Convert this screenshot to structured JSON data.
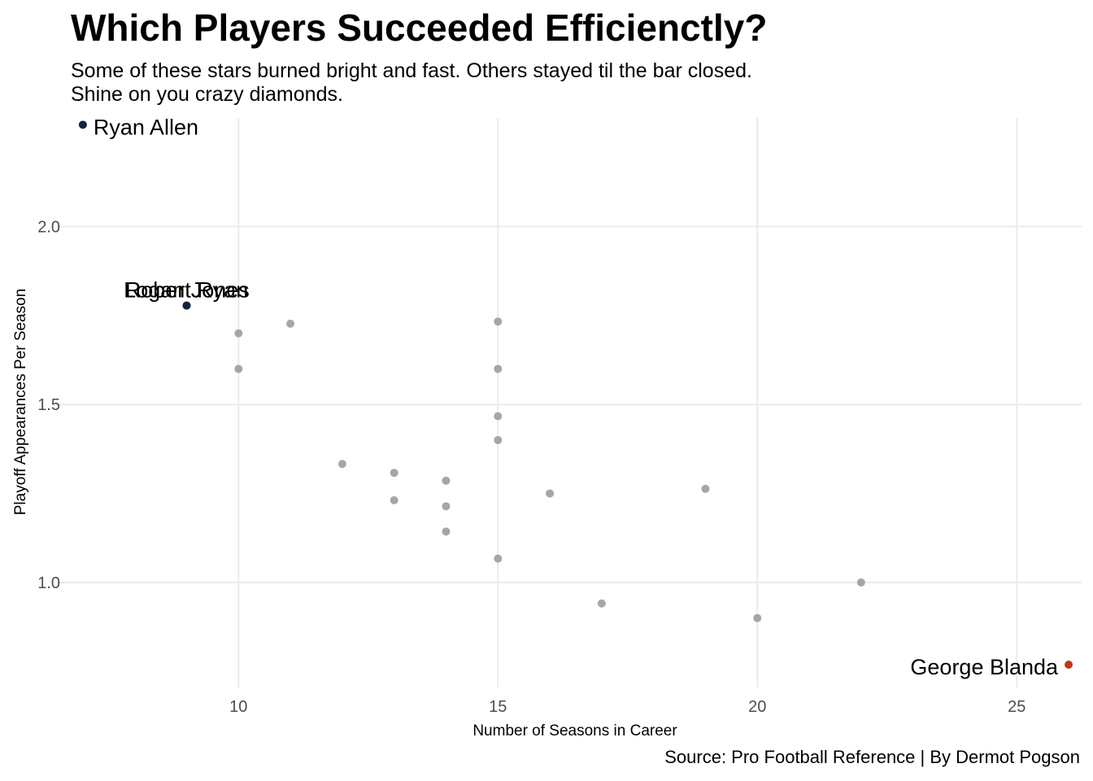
{
  "header": {
    "title": "Which Players Succeeded Efficienctly?",
    "subtitle_line1": "Some of these stars burned bright and fast. Others stayed til the bar closed.",
    "subtitle_line2": "Shine on you crazy diamonds."
  },
  "footer": {
    "caption": "Source: Pro Football Reference | By Dermot Pogson"
  },
  "colors": {
    "default_point": "#a6a6a6",
    "highlight_efficient": "#0b2640",
    "highlight_long": "#c0390b",
    "grid": "#ebebeb"
  },
  "chart_data": {
    "type": "scatter",
    "xlabel": "Number of Seasons in Career",
    "ylabel": "Playoff Appearances Per Season",
    "xlim": [
      6.5,
      26.25
    ],
    "ylim": [
      0.705,
      2.305
    ],
    "xticks": [
      10,
      15,
      20,
      25
    ],
    "xtick_labels": [
      "10",
      "15",
      "20",
      "25"
    ],
    "yticks": [
      1.0,
      1.5,
      2.0
    ],
    "ytick_labels": [
      "1.0",
      "1.5",
      "2.0"
    ],
    "grid": true,
    "points": [
      {
        "x": 7,
        "y": 2.286,
        "label": "Ryan Allen",
        "color": "#0b2640",
        "label_pos": "right"
      },
      {
        "x": 9,
        "y": 1.778,
        "label": "Robert Ryan",
        "color": "#0b2640",
        "label_pos": "above"
      },
      {
        "x": 9,
        "y": 1.778,
        "label": "Logan Jones",
        "color": "#0b2640",
        "label_pos": "above"
      },
      {
        "x": 26,
        "y": 0.769,
        "label": "George Blanda",
        "color": "#c0390b",
        "label_pos": "left"
      },
      {
        "x": 10,
        "y": 1.7
      },
      {
        "x": 10,
        "y": 1.6
      },
      {
        "x": 11,
        "y": 1.727
      },
      {
        "x": 12,
        "y": 1.333
      },
      {
        "x": 13,
        "y": 1.308
      },
      {
        "x": 13,
        "y": 1.231
      },
      {
        "x": 14,
        "y": 1.286
      },
      {
        "x": 14,
        "y": 1.214
      },
      {
        "x": 14,
        "y": 1.143
      },
      {
        "x": 15,
        "y": 1.733
      },
      {
        "x": 15,
        "y": 1.6
      },
      {
        "x": 15,
        "y": 1.467
      },
      {
        "x": 15,
        "y": 1.4
      },
      {
        "x": 15,
        "y": 1.067
      },
      {
        "x": 16,
        "y": 1.25
      },
      {
        "x": 17,
        "y": 0.941
      },
      {
        "x": 19,
        "y": 1.263
      },
      {
        "x": 20,
        "y": 0.9
      },
      {
        "x": 22,
        "y": 1.0
      }
    ]
  }
}
